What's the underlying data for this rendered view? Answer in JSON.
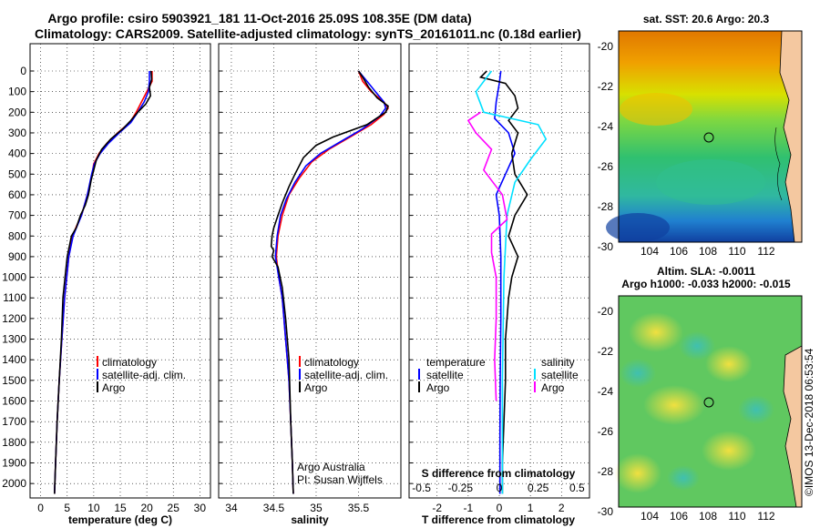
{
  "title_line1": "Argo profile: csiro 5903921_181 11-Oct-2016 25.09S 108.35E (DM data)",
  "title_line2": "Climatology: CARS2009. Satellite-adjusted climatology: synTS_20161011.nc (0.18d earlier)",
  "colors": {
    "climatology": "#ff0000",
    "satellite": "#0000ff",
    "argo": "#000000",
    "sat_salinity": "#00e0ff",
    "clim_salinity": "#ff00ff"
  },
  "depth_ticks": [
    "0",
    "100",
    "200",
    "300",
    "400",
    "500",
    "600",
    "700",
    "800",
    "900",
    "1000",
    "1100",
    "1200",
    "1300",
    "1400",
    "1500",
    "1600",
    "1700",
    "1800",
    "1900",
    "2000"
  ],
  "chart_data": [
    {
      "type": "line",
      "xlabel": "temperature (deg C)",
      "xticks": [
        "0",
        "5",
        "10",
        "15",
        "20",
        "25",
        "30"
      ],
      "xlim": [
        -2,
        32
      ],
      "ylim": [
        2070,
        0
      ],
      "legend": [
        "climatology",
        "satellite-adj. clim.",
        "Argo"
      ],
      "series": [
        {
          "name": "climatology",
          "values": [
            [
              21,
              0
            ],
            [
              21,
              50
            ],
            [
              20,
              100
            ],
            [
              19,
              150
            ],
            [
              18,
              200
            ],
            [
              16.8,
              250
            ],
            [
              14.5,
              300
            ],
            [
              12.5,
              350
            ],
            [
              11,
              400
            ],
            [
              10,
              450
            ],
            [
              9.7,
              500
            ],
            [
              8.8,
              600
            ],
            [
              7.7,
              700
            ],
            [
              6.8,
              750
            ],
            [
              6,
              800
            ],
            [
              5.3,
              900
            ],
            [
              4.5,
              1100
            ],
            [
              4,
              1300
            ],
            [
              3.5,
              1500
            ],
            [
              3.1,
              1700
            ],
            [
              2.8,
              1900
            ],
            [
              2.6,
              2050
            ]
          ]
        },
        {
          "name": "satellite-adj. clim.",
          "values": [
            [
              20.5,
              0
            ],
            [
              20.5,
              50
            ],
            [
              20.3,
              100
            ],
            [
              19.5,
              150
            ],
            [
              18.3,
              200
            ],
            [
              17,
              250
            ],
            [
              14.8,
              300
            ],
            [
              12.8,
              350
            ],
            [
              11.2,
              400
            ],
            [
              10.1,
              450
            ],
            [
              9.6,
              500
            ],
            [
              8.8,
              600
            ],
            [
              7.7,
              700
            ],
            [
              6.9,
              750
            ],
            [
              6.1,
              800
            ],
            [
              5.3,
              900
            ],
            [
              4.5,
              1100
            ],
            [
              4,
              1300
            ],
            [
              3.5,
              1500
            ],
            [
              3.1,
              1700
            ],
            [
              2.8,
              1900
            ],
            [
              2.6,
              2050
            ]
          ]
        },
        {
          "name": "Argo",
          "values": [
            [
              20.8,
              0
            ],
            [
              20.9,
              40
            ],
            [
              20.5,
              80
            ],
            [
              20.7,
              120
            ],
            [
              19.8,
              160
            ],
            [
              18.3,
              200
            ],
            [
              17,
              240
            ],
            [
              15.5,
              280
            ],
            [
              13.2,
              330
            ],
            [
              11.5,
              380
            ],
            [
              10.5,
              430
            ],
            [
              10,
              480
            ],
            [
              9.5,
              530
            ],
            [
              9,
              600
            ],
            [
              8.4,
              650
            ],
            [
              7.5,
              700
            ],
            [
              6.7,
              760
            ],
            [
              5.8,
              800
            ],
            [
              5.4,
              850
            ],
            [
              5,
              900
            ],
            [
              4.6,
              1000
            ],
            [
              4.2,
              1100
            ],
            [
              3.9,
              1300
            ],
            [
              3.5,
              1500
            ],
            [
              3.1,
              1700
            ],
            [
              2.8,
              1900
            ],
            [
              2.6,
              2050
            ]
          ]
        }
      ]
    },
    {
      "type": "line",
      "xlabel": "salinity",
      "xticks": [
        "34",
        "34.5",
        "35",
        "35.5"
      ],
      "xlim": [
        33.85,
        36.0
      ],
      "ylim": [
        2070,
        0
      ],
      "legend": [
        "climatology",
        "satellite-adj. clim.",
        "Argo"
      ],
      "annotation": [
        "Argo Australia",
        "PI: Susan Wijffels"
      ],
      "series": [
        {
          "name": "climatology",
          "values": [
            [
              35.5,
              0
            ],
            [
              35.55,
              50
            ],
            [
              35.65,
              100
            ],
            [
              35.8,
              150
            ],
            [
              35.85,
              180
            ],
            [
              35.8,
              210
            ],
            [
              35.65,
              260
            ],
            [
              35.4,
              320
            ],
            [
              35.15,
              380
            ],
            [
              34.95,
              440
            ],
            [
              34.8,
              520
            ],
            [
              34.68,
              600
            ],
            [
              34.6,
              700
            ],
            [
              34.55,
              800
            ],
            [
              34.53,
              900
            ],
            [
              34.56,
              1000
            ],
            [
              34.6,
              1100
            ],
            [
              34.64,
              1300
            ],
            [
              34.68,
              1500
            ],
            [
              34.7,
              1700
            ],
            [
              34.72,
              1900
            ],
            [
              34.73,
              2050
            ]
          ]
        },
        {
          "name": "satellite-adj. clim.",
          "values": [
            [
              35.5,
              0
            ],
            [
              35.6,
              50
            ],
            [
              35.7,
              100
            ],
            [
              35.8,
              150
            ],
            [
              35.82,
              180
            ],
            [
              35.75,
              220
            ],
            [
              35.55,
              280
            ],
            [
              35.3,
              340
            ],
            [
              35.05,
              400
            ],
            [
              34.88,
              460
            ],
            [
              34.75,
              540
            ],
            [
              34.65,
              620
            ],
            [
              34.58,
              700
            ],
            [
              34.54,
              800
            ],
            [
              34.52,
              900
            ],
            [
              34.56,
              1000
            ],
            [
              34.6,
              1100
            ],
            [
              34.64,
              1300
            ],
            [
              34.68,
              1500
            ],
            [
              34.7,
              1700
            ],
            [
              34.72,
              1900
            ],
            [
              34.73,
              2050
            ]
          ]
        },
        {
          "name": "Argo",
          "values": [
            [
              35.5,
              0
            ],
            [
              35.55,
              30
            ],
            [
              35.62,
              80
            ],
            [
              35.72,
              130
            ],
            [
              35.85,
              170
            ],
            [
              35.82,
              200
            ],
            [
              35.6,
              260
            ],
            [
              35.2,
              320
            ],
            [
              35.0,
              360
            ],
            [
              34.85,
              420
            ],
            [
              34.75,
              500
            ],
            [
              34.68,
              560
            ],
            [
              34.6,
              640
            ],
            [
              34.55,
              700
            ],
            [
              34.5,
              760
            ],
            [
              34.48,
              800
            ],
            [
              34.47,
              850
            ],
            [
              34.5,
              870
            ],
            [
              34.48,
              900
            ],
            [
              34.55,
              950
            ],
            [
              34.6,
              1050
            ],
            [
              34.64,
              1200
            ],
            [
              34.68,
              1400
            ],
            [
              34.7,
              1700
            ],
            [
              34.72,
              1900
            ],
            [
              34.73,
              2050
            ]
          ]
        }
      ]
    },
    {
      "type": "line",
      "xlabel": "T difference from climatology",
      "xlabel_top": "S difference from climatology",
      "xticks": [
        "-2",
        "-1",
        "0",
        "1",
        "2"
      ],
      "xticks_top": [
        "-0.5",
        "-0.25",
        "0",
        "0.25",
        "0.5"
      ],
      "xlim": [
        -2.9,
        2.9
      ],
      "ylim": [
        2070,
        0
      ],
      "legend_left_title": "temperature",
      "legend_right_title": "salinity",
      "legend_left": [
        "satellite",
        "Argo"
      ],
      "legend_right": [
        "satellite",
        "Argo"
      ],
      "series": [
        {
          "name": "satellite",
          "values": [
            [
              0.05,
              0
            ],
            [
              0.0,
              60
            ],
            [
              -0.1,
              150
            ],
            [
              -0.15,
              230
            ],
            [
              0.3,
              300
            ],
            [
              0.5,
              400
            ],
            [
              0.2,
              500
            ],
            [
              -0.1,
              600
            ],
            [
              0.0,
              700
            ],
            [
              0.05,
              900
            ],
            [
              0.05,
              1200
            ],
            [
              0.03,
              1500
            ],
            [
              0.02,
              1800
            ],
            [
              0.02,
              2050
            ]
          ]
        },
        {
          "name": "Argo",
          "values": [
            [
              -0.4,
              0
            ],
            [
              -0.6,
              30
            ],
            [
              0.2,
              60
            ],
            [
              0.5,
              120
            ],
            [
              0.6,
              180
            ],
            [
              0.3,
              240
            ],
            [
              0.6,
              300
            ],
            [
              0.4,
              400
            ],
            [
              0.5,
              500
            ],
            [
              0.9,
              600
            ],
            [
              0.5,
              700
            ],
            [
              0.4,
              750
            ],
            [
              0.3,
              800
            ],
            [
              0.6,
              900
            ],
            [
              0.4,
              1000
            ],
            [
              0.3,
              1100
            ],
            [
              0.2,
              1300
            ],
            [
              0.2,
              1500
            ],
            [
              0.15,
              1700
            ],
            [
              0.1,
              1900
            ],
            [
              0.1,
              2050
            ]
          ]
        },
        {
          "name": "salinity satellite",
          "values": [
            [
              -0.05,
              0
            ],
            [
              -0.15,
              100
            ],
            [
              -0.1,
              200
            ],
            [
              0.25,
              260
            ],
            [
              0.3,
              330
            ],
            [
              0.2,
              430
            ],
            [
              0.1,
              540
            ],
            [
              0.05,
              700
            ],
            [
              0.03,
              1000
            ],
            [
              0.02,
              1500
            ],
            [
              0.02,
              2050
            ]
          ]
        },
        {
          "name": "salinity Argo",
          "values": [
            [
              -0.12,
              200
            ],
            [
              -0.2,
              240
            ],
            [
              -0.15,
              300
            ],
            [
              -0.05,
              380
            ],
            [
              -0.1,
              480
            ],
            [
              0.02,
              600
            ],
            [
              0.05,
              720
            ],
            [
              -0.05,
              790
            ],
            [
              -0.05,
              880
            ],
            [
              -0.02,
              1000
            ],
            [
              -0.02,
              1200
            ],
            [
              -0.03,
              1400
            ],
            [
              -0.02,
              1600
            ]
          ]
        }
      ]
    }
  ],
  "map_sst": {
    "title": "sat. SST: 20.6 Argo: 20.3",
    "lon_ticks": [
      "104",
      "106",
      "108",
      "110",
      "112"
    ],
    "lat_ticks": [
      "-20",
      "-22",
      "-24",
      "-26",
      "-28",
      "-30"
    ]
  },
  "map_sla": {
    "title1": "Altim. SLA: -0.0011",
    "title2": "Argo h1000: -0.033 h2000: -0.015",
    "lon_ticks": [
      "104",
      "106",
      "108",
      "110",
      "112"
    ],
    "lat_ticks": [
      "-20",
      "-22",
      "-24",
      "-26",
      "-28",
      "-30"
    ]
  },
  "watermark": "©IMOS 13-Dec-2018 06:53:54"
}
